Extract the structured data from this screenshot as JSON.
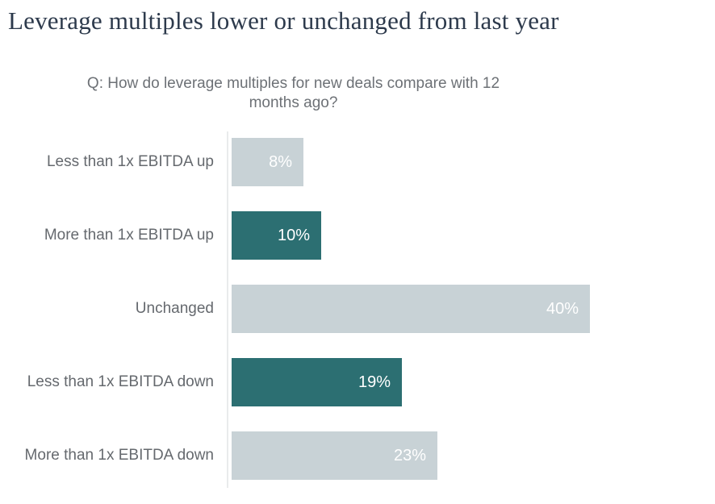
{
  "page": {
    "title": "Leverage multiples lower or unchanged from last year"
  },
  "chart_data": {
    "type": "bar",
    "orientation": "horizontal",
    "title": "Q: How do leverage multiples for new deals compare with 12 months ago?",
    "title_lines": [
      "Q: How do leverage multiples for new deals compare with 12",
      "months ago?"
    ],
    "categories": [
      "Less than 1x EBITDA up",
      "More than 1x EBITDA up",
      "Unchanged",
      "Less than 1x EBITDA down",
      "More than 1x EBITDA down"
    ],
    "values": [
      8,
      10,
      40,
      19,
      23
    ],
    "value_labels": [
      "8%",
      "10%",
      "40%",
      "19%",
      "23%"
    ],
    "bar_colors": [
      "#c8d2d6",
      "#2c6f72",
      "#c8d2d6",
      "#2c6f72",
      "#c8d2d6"
    ],
    "xlabel": "",
    "ylabel": "",
    "xlim": [
      0,
      54
    ],
    "grid": false,
    "legend": false,
    "colors": {
      "accent_teal": "#2c6f72",
      "muted_gray_blue": "#c8d2d6",
      "axis_line": "#e9ebec",
      "category_label_gray": "#65696e",
      "subtitle_gray": "#6d7176",
      "title_navy": "#2d3a4c",
      "value_text": "#ffffff",
      "background": "#ffffff"
    }
  }
}
